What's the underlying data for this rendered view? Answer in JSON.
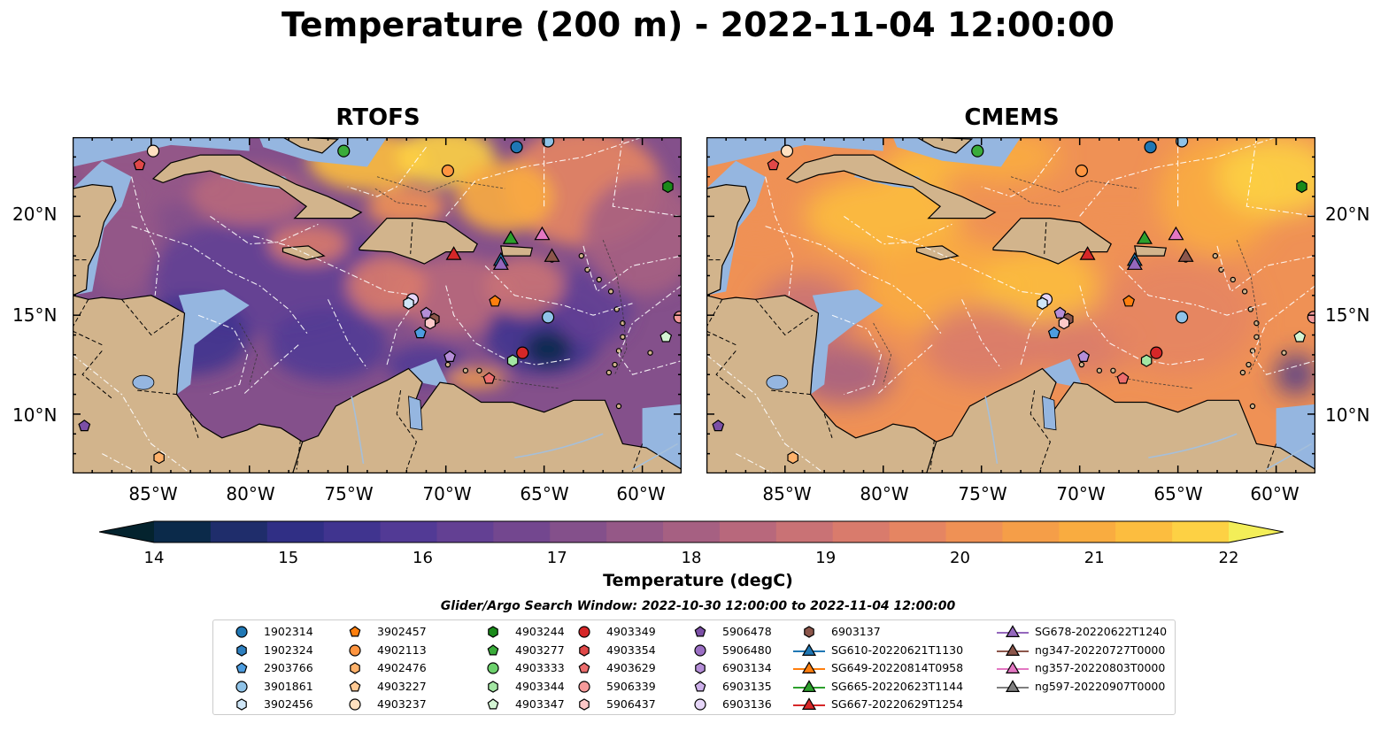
{
  "title": "Temperature (200 m) - 2022-11-04 12:00:00",
  "panels": [
    {
      "subtitle": "RTOFS"
    },
    {
      "subtitle": "CMEMS"
    }
  ],
  "lat_labels": [
    "20°N",
    "15°N",
    "10°N"
  ],
  "lon_labels": [
    "85°W",
    "80°W",
    "75°W",
    "70°W",
    "65°W",
    "60°W"
  ],
  "colorbar": {
    "label": "Temperature (degC)",
    "min": 14,
    "max": 22,
    "ticks": [
      "14",
      "15",
      "16",
      "17",
      "18",
      "19",
      "20",
      "21",
      "22"
    ],
    "colors": [
      "#04232e",
      "#0b2a4a",
      "#1f2d6b",
      "#302f85",
      "#40348f",
      "#523a95",
      "#634093",
      "#73478f",
      "#84508b",
      "#955887",
      "#a66082",
      "#b8687c",
      "#c97275",
      "#d97b6c",
      "#e58562",
      "#ef9155",
      "#f59e48",
      "#f9ac40",
      "#fcbd3f",
      "#fdd144",
      "#f3ee58"
    ]
  },
  "search_window": "Glider/Argo Search Window: 2022-10-30 12:00:00 to 2022-11-04 12:00:00",
  "legend": [
    {
      "label": "1902314",
      "marker": "circle",
      "color": "#1f77b4"
    },
    {
      "label": "1902324",
      "marker": "hexagon",
      "color": "#2e80c0"
    },
    {
      "label": "2903766",
      "marker": "pentagon",
      "color": "#4d9de0"
    },
    {
      "label": "3901861",
      "marker": "circle",
      "color": "#8fc3e8"
    },
    {
      "label": "3902456",
      "marker": "hexagon",
      "color": "#cfe6f7"
    },
    {
      "label": "3902457",
      "marker": "pentagon",
      "color": "#ff7f0e"
    },
    {
      "label": "4902113",
      "marker": "circle",
      "color": "#ff9540"
    },
    {
      "label": "4902476",
      "marker": "hexagon",
      "color": "#ffb26b"
    },
    {
      "label": "4903227",
      "marker": "pentagon",
      "color": "#ffc994"
    },
    {
      "label": "4903237",
      "marker": "circle",
      "color": "#ffe0c0"
    },
    {
      "label": "4903244",
      "marker": "hexagon",
      "color": "#1a8a1a"
    },
    {
      "label": "4903277",
      "marker": "pentagon",
      "color": "#3aac3a"
    },
    {
      "label": "4903333",
      "marker": "circle",
      "color": "#6dd16d"
    },
    {
      "label": "4903344",
      "marker": "hexagon",
      "color": "#a3e6a3"
    },
    {
      "label": "4903347",
      "marker": "pentagon",
      "color": "#d4f5d4"
    },
    {
      "label": "4903349",
      "marker": "circle",
      "color": "#d62728"
    },
    {
      "label": "4903354",
      "marker": "hexagon",
      "color": "#e04848"
    },
    {
      "label": "4903629",
      "marker": "pentagon",
      "color": "#ec6d6d"
    },
    {
      "label": "5906339",
      "marker": "circle",
      "color": "#f59a9a"
    },
    {
      "label": "5906437",
      "marker": "hexagon",
      "color": "#fcc8c8"
    },
    {
      "label": "5906478",
      "marker": "pentagon",
      "color": "#7b4fa6"
    },
    {
      "label": "5906480",
      "marker": "circle",
      "color": "#9b6fc4"
    },
    {
      "label": "6903134",
      "marker": "hexagon",
      "color": "#b58ed8"
    },
    {
      "label": "6903135",
      "marker": "pentagon",
      "color": "#cdb0ea"
    },
    {
      "label": "6903136",
      "marker": "circle",
      "color": "#e6d6f8"
    },
    {
      "label": "6903137",
      "marker": "hexagon",
      "color": "#8c564b"
    },
    {
      "label": "SG610-20220621T1130",
      "marker": "triangle",
      "color": "#1f77b4"
    },
    {
      "label": "SG649-20220814T0958",
      "marker": "triangle",
      "color": "#ff7f0e"
    },
    {
      "label": "SG665-20220623T1144",
      "marker": "triangle",
      "color": "#2ca02c"
    },
    {
      "label": "SG667-20220629T1254",
      "marker": "triangle",
      "color": "#d62728"
    },
    {
      "label": "SG678-20220622T1240",
      "marker": "triangle",
      "color": "#9467bd"
    },
    {
      "label": "ng347-20220727T0000",
      "marker": "triangle",
      "color": "#8c564b"
    },
    {
      "label": "ng357-20220803T0000",
      "marker": "triangle",
      "color": "#e377c2"
    },
    {
      "label": "ng597-20220907T0000",
      "marker": "triangle",
      "color": "#7f7f7f"
    }
  ],
  "map_markers": [
    {
      "lon": -84.9,
      "lat": 23.3,
      "marker": "circle",
      "color": "#ffe0c0"
    },
    {
      "lon": -85.6,
      "lat": 22.6,
      "marker": "pentagon",
      "color": "#e04848"
    },
    {
      "lon": -75.2,
      "lat": 23.3,
      "marker": "circle",
      "color": "#3aac3a"
    },
    {
      "lon": -66.4,
      "lat": 23.5,
      "marker": "circle",
      "color": "#1f77b4"
    },
    {
      "lon": -64.8,
      "lat": 23.8,
      "marker": "circle",
      "color": "#8fc3e8"
    },
    {
      "lon": -69.9,
      "lat": 22.3,
      "marker": "circle",
      "color": "#ff9540"
    },
    {
      "lon": -58.7,
      "lat": 21.5,
      "marker": "hexagon",
      "color": "#1a8a1a"
    },
    {
      "lon": -66.7,
      "lat": 18.9,
      "marker": "triangle",
      "color": "#2ca02c"
    },
    {
      "lon": -65.1,
      "lat": 19.1,
      "marker": "triangle",
      "color": "#e377c2"
    },
    {
      "lon": -69.6,
      "lat": 18.1,
      "marker": "triangle",
      "color": "#d62728"
    },
    {
      "lon": -67.2,
      "lat": 17.8,
      "marker": "triangle",
      "color": "#1f77b4"
    },
    {
      "lon": -67.2,
      "lat": 17.6,
      "marker": "triangle",
      "color": "#9467bd"
    },
    {
      "lon": -64.6,
      "lat": 18.0,
      "marker": "triangle",
      "color": "#8c564b"
    },
    {
      "lon": -71.7,
      "lat": 15.8,
      "marker": "circle",
      "color": "#e6d6f8"
    },
    {
      "lon": -71.9,
      "lat": 15.6,
      "marker": "hexagon",
      "color": "#cfe6f7"
    },
    {
      "lon": -67.5,
      "lat": 15.7,
      "marker": "pentagon",
      "color": "#ff7f0e"
    },
    {
      "lon": -64.8,
      "lat": 14.9,
      "marker": "circle",
      "color": "#8fc3e8"
    },
    {
      "lon": -70.6,
      "lat": 14.8,
      "marker": "hexagon",
      "color": "#8c564b"
    },
    {
      "lon": -71.0,
      "lat": 15.1,
      "marker": "pentagon",
      "color": "#b58ed8"
    },
    {
      "lon": -70.8,
      "lat": 14.6,
      "marker": "hexagon",
      "color": "#fcc8c8"
    },
    {
      "lon": -71.3,
      "lat": 14.1,
      "marker": "pentagon",
      "color": "#4d9de0"
    },
    {
      "lon": -58.1,
      "lat": 14.9,
      "marker": "circle",
      "color": "#f59a9a"
    },
    {
      "lon": -58.8,
      "lat": 13.9,
      "marker": "pentagon",
      "color": "#d4f5d4"
    },
    {
      "lon": -66.1,
      "lat": 13.1,
      "marker": "circle",
      "color": "#d62728"
    },
    {
      "lon": -66.6,
      "lat": 12.7,
      "marker": "hexagon",
      "color": "#a3e6a3"
    },
    {
      "lon": -69.8,
      "lat": 12.9,
      "marker": "pentagon",
      "color": "#b58ed8"
    },
    {
      "lon": -67.8,
      "lat": 11.8,
      "marker": "pentagon",
      "color": "#ec6d6d"
    },
    {
      "lon": -88.4,
      "lat": 9.4,
      "marker": "pentagon",
      "color": "#7b4fa6"
    },
    {
      "lon": -84.6,
      "lat": 7.8,
      "marker": "hexagon",
      "color": "#ffb26b"
    }
  ]
}
